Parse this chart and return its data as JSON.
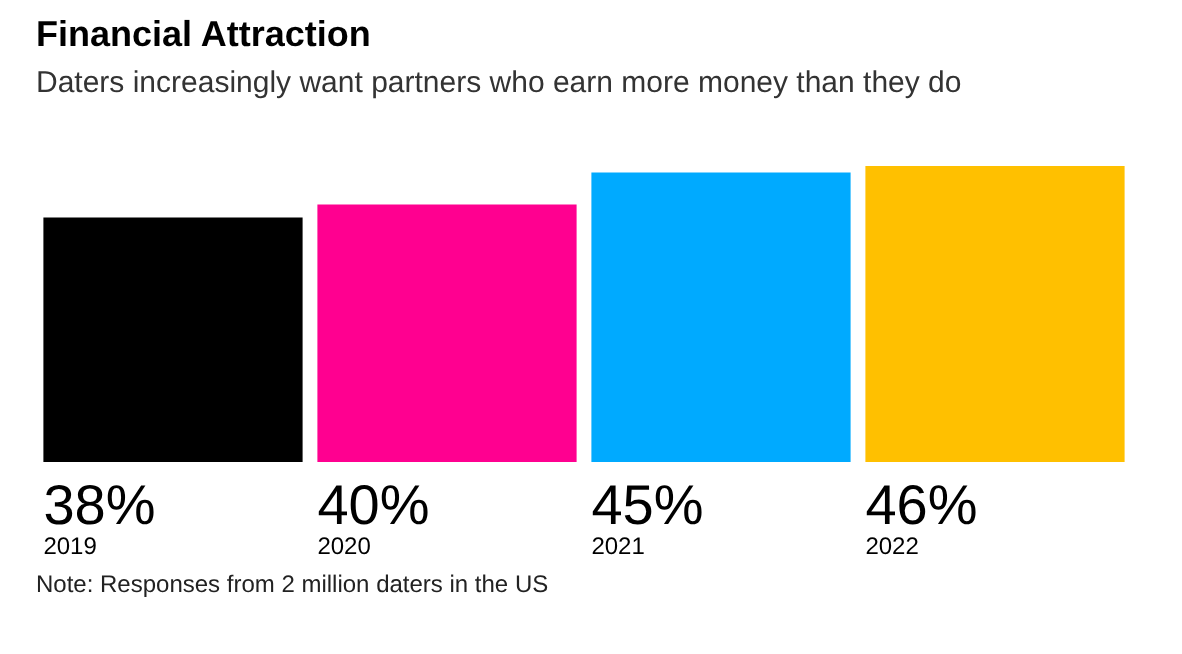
{
  "chart_data": {
    "type": "bar",
    "title": "Financial Attraction",
    "subtitle": "Daters increasingly want partners who earn more money than they do",
    "categories": [
      "2019",
      "2020",
      "2021",
      "2022"
    ],
    "values": [
      38,
      40,
      45,
      46
    ],
    "colors": [
      "#000000",
      "#ff0090",
      "#00aaff",
      "#ffc000"
    ],
    "value_labels": [
      "38%",
      "40%",
      "45%",
      "46%"
    ],
    "ylim": [
      0,
      46
    ],
    "annotations": [
      "Note: Responses from 2 million daters in the US"
    ]
  }
}
